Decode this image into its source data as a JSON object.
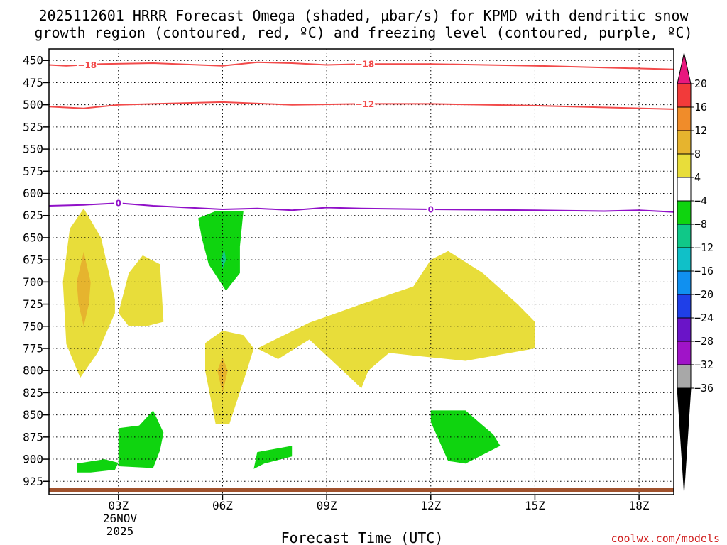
{
  "chart_data": {
    "type": "time-height cross section",
    "title_line1": "2025112601 HRRR Forecast Omega (shaded, μbar/s) for KPMD with dendritic snow",
    "title_line2": "growth region (contoured, red, ºC) and freezing level (contoured, purple, ºC)",
    "xlabel": "Forecast Time (UTC)",
    "x_ticks": [
      {
        "hour": 3,
        "label": "03Z"
      },
      {
        "hour": 6,
        "label": "06Z"
      },
      {
        "hour": 9,
        "label": "09Z"
      },
      {
        "hour": 12,
        "label": "12Z"
      },
      {
        "hour": 15,
        "label": "15Z"
      },
      {
        "hour": 18,
        "label": "18Z"
      }
    ],
    "x_range_hours": [
      1,
      19
    ],
    "date_label_day": "26NOV",
    "date_label_year": "2025",
    "y_label_unit": "hPa",
    "y_range_hpa": [
      437,
      940
    ],
    "y_ticks": [
      450,
      475,
      500,
      525,
      550,
      575,
      600,
      625,
      650,
      675,
      700,
      725,
      750,
      775,
      800,
      825,
      850,
      875,
      900,
      925
    ],
    "colorbar": {
      "levels": [
        20,
        16,
        12,
        8,
        4,
        -4,
        -8,
        -12,
        -16,
        -20,
        -24,
        -28,
        -32,
        -36
      ],
      "labels": [
        "20",
        "16",
        "12",
        "8",
        "4",
        "−4",
        "−8",
        "−12",
        "−16",
        "−20",
        "−24",
        "−28",
        "−32",
        "−36"
      ],
      "colors": [
        "#f23a3a",
        "#f08c2a",
        "#e6b42e",
        "#e8dd3a",
        "#ffffff",
        "#0fd40f",
        "#10c888",
        "#10c0c8",
        "#1090f0",
        "#1f3fe8",
        "#6a14c8",
        "#a014c8",
        "#a8a8a8"
      ],
      "top_arrow_color": "#e8187e",
      "bottom_arrow_color": "#000000"
    },
    "contours": [
      {
        "name": "-18C",
        "color": "#f24a4a",
        "label": "−18",
        "points": [
          [
            1,
            455
          ],
          [
            1.5,
            456
          ],
          [
            2.5,
            454
          ],
          [
            4,
            453
          ],
          [
            6,
            456
          ],
          [
            7,
            452
          ],
          [
            8,
            453
          ],
          [
            9,
            455
          ],
          [
            10,
            454
          ],
          [
            12,
            454
          ],
          [
            15,
            456
          ],
          [
            19,
            460
          ]
        ]
      },
      {
        "name": "-12C",
        "color": "#f24a4a",
        "label": "−12",
        "points": [
          [
            1,
            502
          ],
          [
            2,
            504
          ],
          [
            3,
            500
          ],
          [
            4,
            499
          ],
          [
            6,
            497
          ],
          [
            8,
            500
          ],
          [
            10,
            499
          ],
          [
            12,
            499
          ],
          [
            15,
            501
          ],
          [
            19,
            505
          ]
        ]
      },
      {
        "name": "0C",
        "color": "#9010c8",
        "label": "0",
        "points": [
          [
            1,
            614
          ],
          [
            2,
            613
          ],
          [
            3,
            611
          ],
          [
            4,
            614
          ],
          [
            5,
            616
          ],
          [
            6,
            618
          ],
          [
            7,
            617
          ],
          [
            8,
            619
          ],
          [
            9,
            616
          ],
          [
            10,
            617
          ],
          [
            12,
            618
          ],
          [
            15,
            619
          ],
          [
            17,
            620
          ],
          [
            18,
            619
          ],
          [
            19,
            621
          ]
        ]
      }
    ],
    "contour_labels": [
      {
        "text": "−18",
        "hour": 2.1,
        "hpa": 455,
        "color": "#f24a4a"
      },
      {
        "text": "−18",
        "hour": 10.1,
        "hpa": 454,
        "color": "#f24a4a"
      },
      {
        "text": "−12",
        "hour": 10.1,
        "hpa": 499,
        "color": "#f24a4a"
      },
      {
        "text": "0",
        "hour": 3.0,
        "hpa": 611,
        "color": "#9010c8"
      },
      {
        "text": "0",
        "hour": 12.0,
        "hpa": 618,
        "color": "#9010c8"
      }
    ],
    "shaded_regions": [
      {
        "name": "omega 4-8 column 02Z",
        "level": "4 to 8",
        "color": "#e8dd3a",
        "points": [
          [
            2.0,
            617
          ],
          [
            2.5,
            650
          ],
          [
            2.9,
            720
          ],
          [
            2.9,
            735
          ],
          [
            2.4,
            780
          ],
          [
            1.9,
            808
          ],
          [
            1.5,
            770
          ],
          [
            1.4,
            700
          ],
          [
            1.6,
            640
          ],
          [
            2.0,
            617
          ]
        ]
      },
      {
        "name": "omega 12-16 core 02Z",
        "level": "12 to 16",
        "color": "#e6b42e",
        "points": [
          [
            2.0,
            666
          ],
          [
            2.2,
            700
          ],
          [
            2.15,
            725
          ],
          [
            2.0,
            750
          ],
          [
            1.85,
            725
          ],
          [
            1.8,
            700
          ],
          [
            2.0,
            666
          ]
        ]
      },
      {
        "name": "omega 4-8 03Z-04Z",
        "level": "4 to 8",
        "color": "#e8dd3a",
        "points": [
          [
            3.0,
            735
          ],
          [
            3.3,
            690
          ],
          [
            3.7,
            670
          ],
          [
            4.2,
            680
          ],
          [
            4.3,
            745
          ],
          [
            3.8,
            750
          ],
          [
            3.3,
            750
          ],
          [
            3.0,
            735
          ]
        ]
      },
      {
        "name": "omega 4-8 06Z",
        "level": "4 to 8",
        "color": "#e8dd3a",
        "points": [
          [
            5.5,
            769
          ],
          [
            6.0,
            755
          ],
          [
            6.6,
            760
          ],
          [
            6.9,
            775
          ],
          [
            6.7,
            800
          ],
          [
            6.2,
            860
          ],
          [
            5.8,
            860
          ],
          [
            5.5,
            800
          ],
          [
            5.5,
            769
          ]
        ]
      },
      {
        "name": "omega 12-16 06Z",
        "level": "12 to 16",
        "color": "#e6b42e",
        "points": [
          [
            6.0,
            785
          ],
          [
            6.15,
            800
          ],
          [
            6.0,
            825
          ],
          [
            5.85,
            800
          ],
          [
            6.0,
            785
          ]
        ]
      },
      {
        "name": "omega 4-8 large 08Z-15Z",
        "level": "4 to 8",
        "color": "#e8dd3a",
        "points": [
          [
            7.0,
            775
          ],
          [
            8.5,
            746
          ],
          [
            10.0,
            725
          ],
          [
            11.5,
            705
          ],
          [
            12.0,
            675
          ],
          [
            12.5,
            665
          ],
          [
            13.5,
            690
          ],
          [
            14.5,
            725
          ],
          [
            15.0,
            745
          ],
          [
            15.0,
            775
          ],
          [
            13.0,
            789
          ],
          [
            11.5,
            783
          ],
          [
            10.8,
            780
          ],
          [
            10.2,
            800
          ],
          [
            10.0,
            820
          ],
          [
            9.6,
            805
          ],
          [
            8.5,
            765
          ],
          [
            7.6,
            787
          ],
          [
            7.0,
            775
          ]
        ]
      },
      {
        "name": "omega -4 to -8 05Z-06Z",
        "level": "-4 to -8",
        "color": "#0fd40f",
        "points": [
          [
            5.3,
            628
          ],
          [
            5.8,
            620
          ],
          [
            6.6,
            620
          ],
          [
            6.5,
            660
          ],
          [
            6.5,
            690
          ],
          [
            6.1,
            710
          ],
          [
            5.6,
            680
          ],
          [
            5.4,
            650
          ],
          [
            5.3,
            628
          ]
        ]
      },
      {
        "name": "omega -8 to -12 06Z",
        "level": "-8 to -12",
        "color": "#10c888",
        "points": [
          [
            6.05,
            663
          ],
          [
            6.1,
            675
          ],
          [
            6.0,
            685
          ],
          [
            5.95,
            675
          ],
          [
            6.05,
            663
          ]
        ]
      },
      {
        "name": "omega -4 to -8 02Z",
        "level": "-4 to -8",
        "color": "#0fd40f",
        "points": [
          [
            1.8,
            905
          ],
          [
            2.6,
            900
          ],
          [
            3.0,
            904
          ],
          [
            2.9,
            912
          ],
          [
            2.2,
            915
          ],
          [
            1.8,
            915
          ],
          [
            1.8,
            905
          ]
        ]
      },
      {
        "name": "omega -4 to -8 03Z-04Z",
        "level": "-4 to -8",
        "color": "#0fd40f",
        "points": [
          [
            3.0,
            865
          ],
          [
            3.6,
            862
          ],
          [
            4.0,
            845
          ],
          [
            4.3,
            870
          ],
          [
            4.2,
            890
          ],
          [
            4.0,
            910
          ],
          [
            3.0,
            908
          ],
          [
            3.0,
            865
          ]
        ]
      },
      {
        "name": "omega -4 to -8 07Z-08Z",
        "level": "-4 to -8",
        "color": "#0fd40f",
        "points": [
          [
            7.0,
            892
          ],
          [
            8.0,
            885
          ],
          [
            8.0,
            897
          ],
          [
            7.2,
            905
          ],
          [
            6.9,
            911
          ],
          [
            7.0,
            892
          ]
        ]
      },
      {
        "name": "omega -4 to -8 12Z-14Z",
        "level": "-4 to -8",
        "color": "#0fd40f",
        "points": [
          [
            12.0,
            845
          ],
          [
            13.0,
            845
          ],
          [
            13.5,
            862
          ],
          [
            13.8,
            872
          ],
          [
            14.0,
            885
          ],
          [
            13.0,
            905
          ],
          [
            12.5,
            902
          ],
          [
            12.0,
            858
          ],
          [
            12.0,
            845
          ]
        ]
      }
    ],
    "terrain_color": "#a0522d"
  },
  "credit": "coolwx.com/models"
}
